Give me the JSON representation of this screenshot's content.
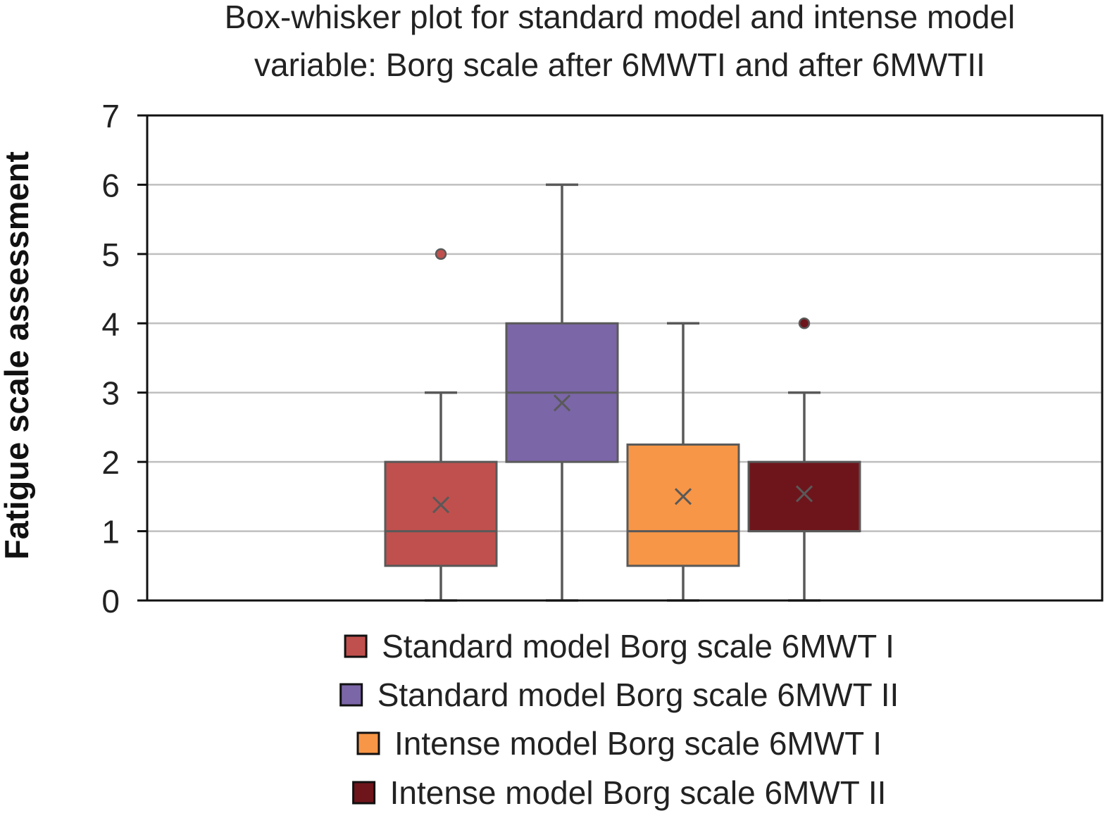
{
  "chart_data": {
    "type": "box",
    "title_lines": [
      "Box-whisker plot for standard model and intense model",
      "variable: Borg scale after 6MWTI and after 6MWTII"
    ],
    "xlabel": "",
    "ylabel": "Fatigue scale assessment",
    "ylim": [
      0,
      7
    ],
    "yticks": [
      "0",
      "1",
      "2",
      "3",
      "4",
      "5",
      "6",
      "7"
    ],
    "grid": true,
    "legend_position": "bottom",
    "series": [
      {
        "name": "Standard model Borg scale 6MWT I",
        "color": "#c0504d",
        "min": 0,
        "q1": 0.5,
        "median": 1,
        "q3": 2,
        "max": 3,
        "mean": 1.38,
        "outliers": [
          5
        ]
      },
      {
        "name": "Standard model Borg scale 6MWT II",
        "color": "#7b66a8",
        "min": 0,
        "q1": 2,
        "median": 3,
        "q3": 4,
        "max": 6,
        "mean": 2.85,
        "outliers": []
      },
      {
        "name": "Intense model Borg scale 6MWT I",
        "color": "#f79646",
        "min": 0,
        "q1": 0.5,
        "median": 1,
        "q3": 2.25,
        "max": 4,
        "mean": 1.5,
        "outliers": []
      },
      {
        "name": "Intense model Borg scale 6MWT II",
        "color": "#6e151b",
        "min": 0,
        "q1": 1,
        "median": 1,
        "q3": 2,
        "max": 3,
        "mean": 1.54,
        "outliers": [
          4
        ]
      }
    ]
  }
}
